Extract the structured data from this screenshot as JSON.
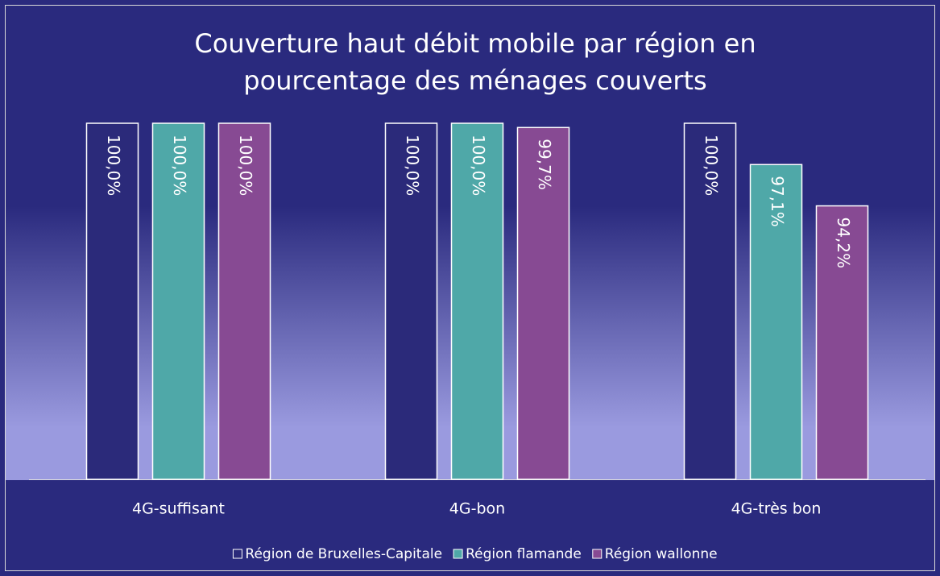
{
  "chart_data": {
    "type": "bar",
    "title": [
      "Couverture haut débit mobile par région en",
      "pourcentage des ménages couverts"
    ],
    "categories": [
      "4G-suffisant",
      "4G-bon",
      "4G-très bon"
    ],
    "series": [
      {
        "name": "Région de Bruxelles-Capitale",
        "color": "#2b2a7a",
        "values": [
          100,
          100,
          100
        ],
        "value_labels": [
          "100,0%",
          "100,0%",
          "100,0%"
        ]
      },
      {
        "name": "Région flamande",
        "color": "#4fa8a8",
        "values": [
          100,
          100,
          97.1
        ],
        "value_labels": [
          "100,0%",
          "100,0%",
          "97,1%"
        ]
      },
      {
        "name": "Région wallonne",
        "color": "#874a93",
        "values": [
          100,
          99.7,
          94.2
        ],
        "value_labels": [
          "100,0%",
          "99,7%",
          "94,2%"
        ]
      }
    ],
    "ylim": [
      75,
      100
    ],
    "legend": "bottom"
  }
}
